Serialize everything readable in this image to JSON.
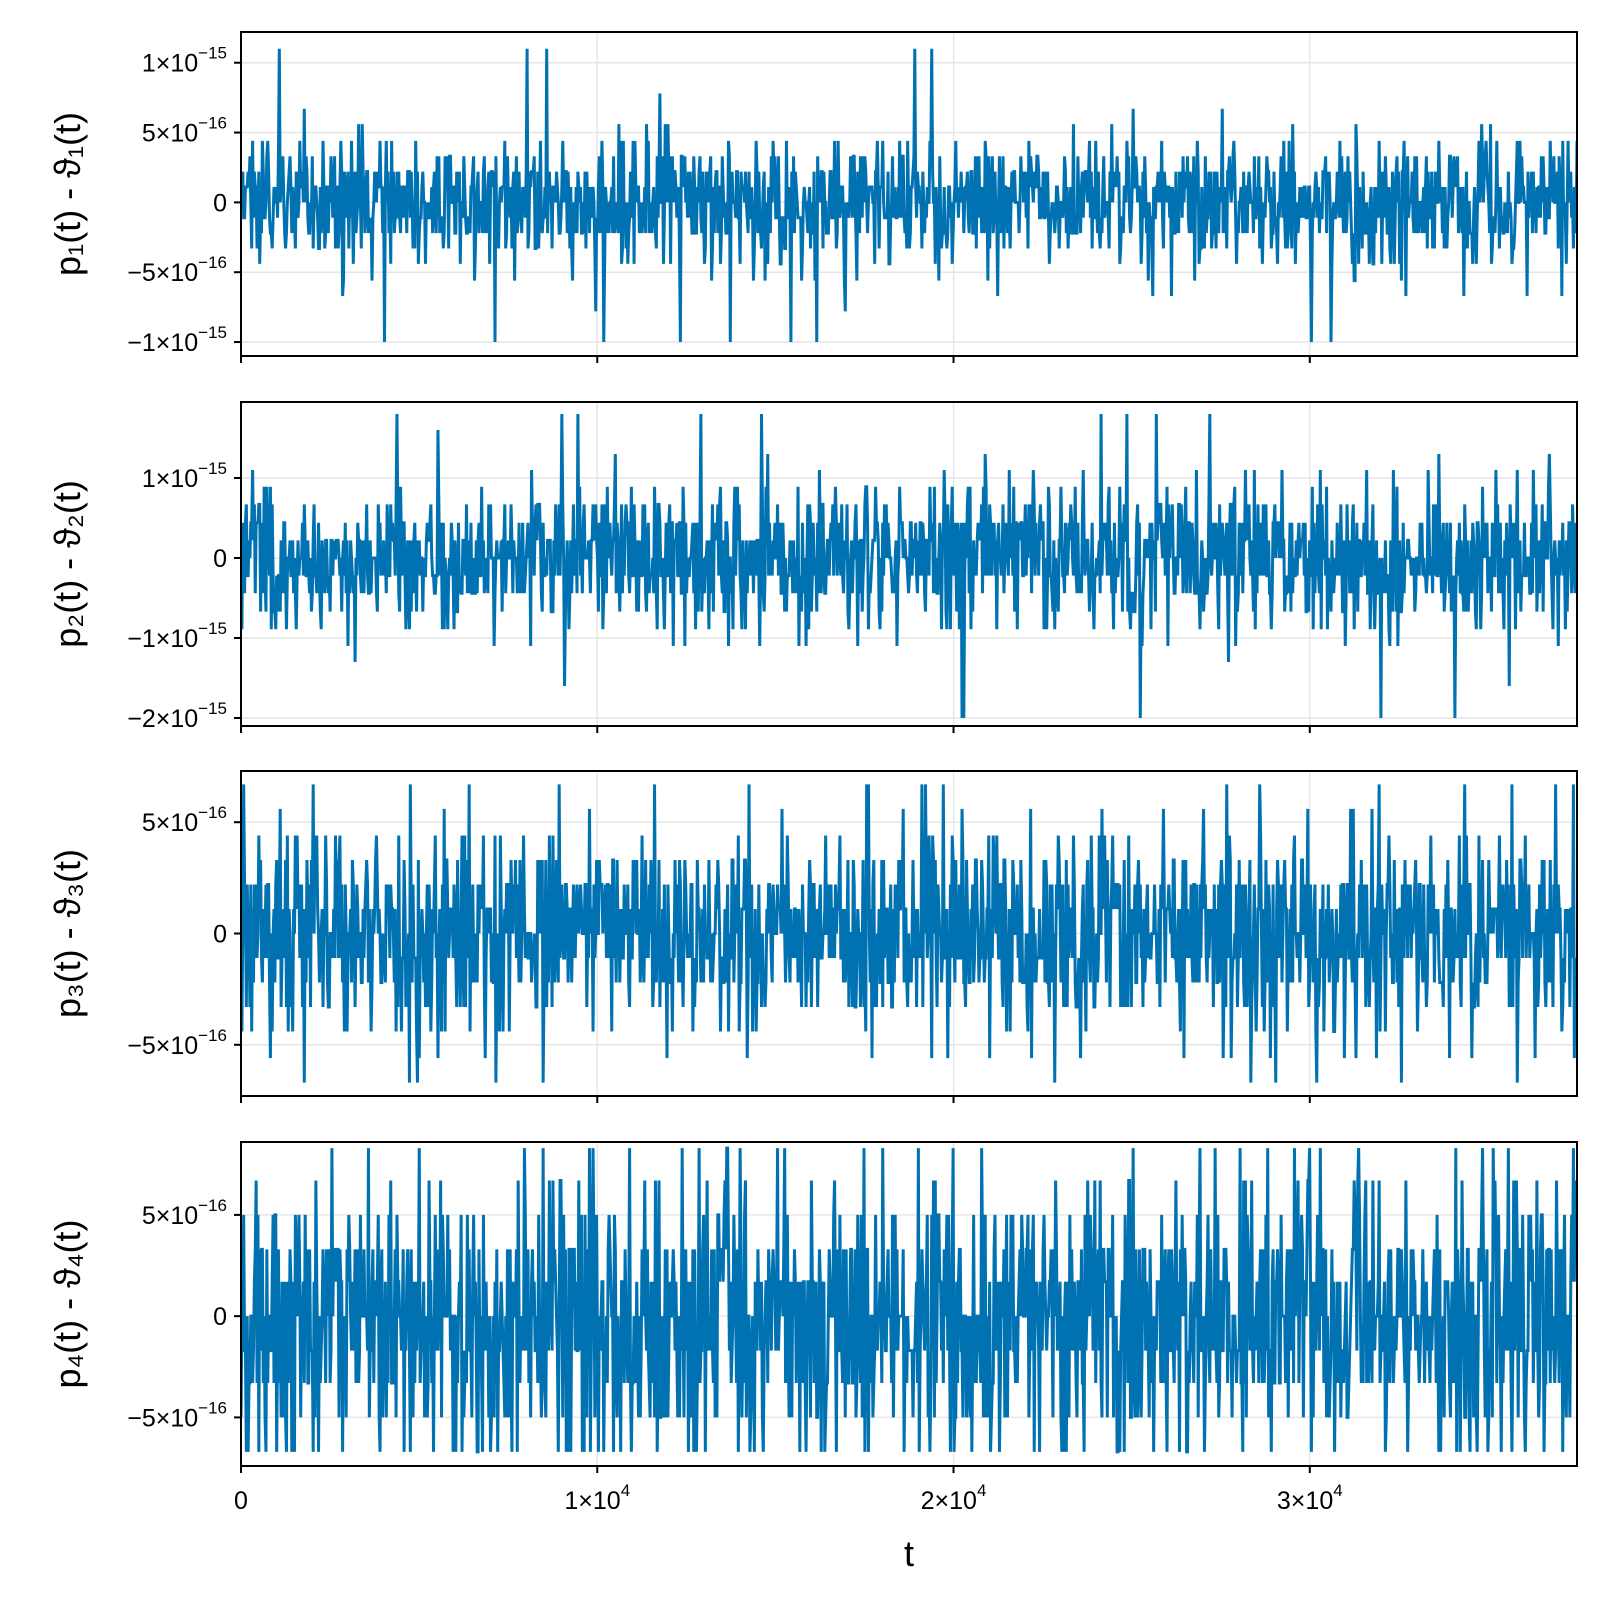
{
  "colors": {
    "series": "#0072b2",
    "grid": "#e6e6e6",
    "frame": "#000000"
  },
  "x_axis": {
    "label": "t",
    "range": [
      0,
      37500
    ],
    "ticks": [
      {
        "value": 0,
        "mantissa": "0",
        "exp": ""
      },
      {
        "value": 10000,
        "mantissa": "1×10",
        "exp": "4"
      },
      {
        "value": 20000,
        "mantissa": "2×10",
        "exp": "4"
      },
      {
        "value": 30000,
        "mantissa": "3×10",
        "exp": "4"
      }
    ]
  },
  "chart_data": [
    {
      "type": "line",
      "ylabel": "p₁(t) - ϑ₁(t)",
      "ylim": [
        -1.1e-15,
        1.22e-15
      ],
      "yticks": [
        {
          "value": 1e-15,
          "mantissa": "1×10",
          "exp": "−15"
        },
        {
          "value": 5e-16,
          "mantissa": "5×10",
          "exp": "−16"
        },
        {
          "value": 0,
          "mantissa": "0",
          "exp": ""
        },
        {
          "value": -5e-16,
          "mantissa": "−5×10",
          "exp": "−16"
        },
        {
          "value": -1e-15,
          "mantissa": "−1×10",
          "exp": "−15"
        }
      ],
      "x_range": [
        0,
        37500
      ],
      "n_points": 1500,
      "levels": [
        -1e-15,
        -8.9e-16,
        -7.8e-16,
        -6.7e-16,
        -5.6e-16,
        -4.4e-16,
        -3.3e-16,
        -2.2e-16,
        -1.1e-16,
        0,
        1.1e-16,
        2.2e-16,
        3.3e-16,
        4.4e-16,
        5.6e-16,
        6.7e-16,
        7.8e-16,
        8.9e-16,
        1e-15,
        1.1e-15
      ],
      "extremes": {
        "max": 1.1e-15,
        "min": -1e-15
      }
    },
    {
      "type": "line",
      "ylabel": "p₂(t) - ϑ₂(t)",
      "ylim": [
        -2.1e-15,
        1.95e-15
      ],
      "yticks": [
        {
          "value": 1e-15,
          "mantissa": "1×10",
          "exp": "−15"
        },
        {
          "value": 0,
          "mantissa": "0",
          "exp": ""
        },
        {
          "value": -1e-15,
          "mantissa": "−1×10",
          "exp": "−15"
        },
        {
          "value": -2e-15,
          "mantissa": "−2×10",
          "exp": "−15"
        }
      ],
      "x_range": [
        0,
        37500
      ],
      "n_points": 1500,
      "levels": [
        -2e-15,
        -1.8e-15,
        -1.6e-15,
        -1.3e-15,
        -1.1e-15,
        -8.9e-16,
        -6.7e-16,
        -4.4e-16,
        -2.2e-16,
        0,
        2.2e-16,
        4.4e-16,
        6.7e-16,
        8.9e-16,
        1.1e-15,
        1.3e-15,
        1.6e-15,
        1.8e-15
      ],
      "extremes": {
        "max": 1.8e-15,
        "min": -2e-15
      }
    },
    {
      "type": "line",
      "ylabel": "p₃(t) - ϑ₃(t)",
      "ylim": [
        -7.3e-16,
        7.3e-16
      ],
      "yticks": [
        {
          "value": 5e-16,
          "mantissa": "5×10",
          "exp": "−16"
        },
        {
          "value": 0,
          "mantissa": "0",
          "exp": ""
        },
        {
          "value": -5e-16,
          "mantissa": "−5×10",
          "exp": "−16"
        }
      ],
      "x_range": [
        0,
        37500
      ],
      "n_points": 1500,
      "levels": [
        -6.7e-16,
        -5.6e-16,
        -4.4e-16,
        -3.3e-16,
        -2.2e-16,
        -1.1e-16,
        0,
        1.1e-16,
        2.2e-16,
        3.3e-16,
        4.4e-16,
        5.6e-16,
        6.7e-16
      ],
      "extremes": {
        "max": 6.7e-16,
        "min": -6.7e-16
      }
    },
    {
      "type": "line",
      "ylabel": "p₄(t) - ϑ₄(t)",
      "ylim": [
        -7.4e-16,
        8.6e-16
      ],
      "yticks": [
        {
          "value": 5e-16,
          "mantissa": "5×10",
          "exp": "−16"
        },
        {
          "value": 0,
          "mantissa": "0",
          "exp": ""
        },
        {
          "value": -5e-16,
          "mantissa": "−5×10",
          "exp": "−16"
        }
      ],
      "x_range": [
        0,
        37500
      ],
      "n_points": 1500,
      "levels": [
        -6.7e-16,
        -5e-16,
        -3.3e-16,
        -1.7e-16,
        0,
        1.7e-16,
        3.3e-16,
        5e-16,
        6.7e-16,
        8.3e-16
      ],
      "extremes": {
        "max": 8.3e-16,
        "min": -6.7e-16
      }
    }
  ]
}
